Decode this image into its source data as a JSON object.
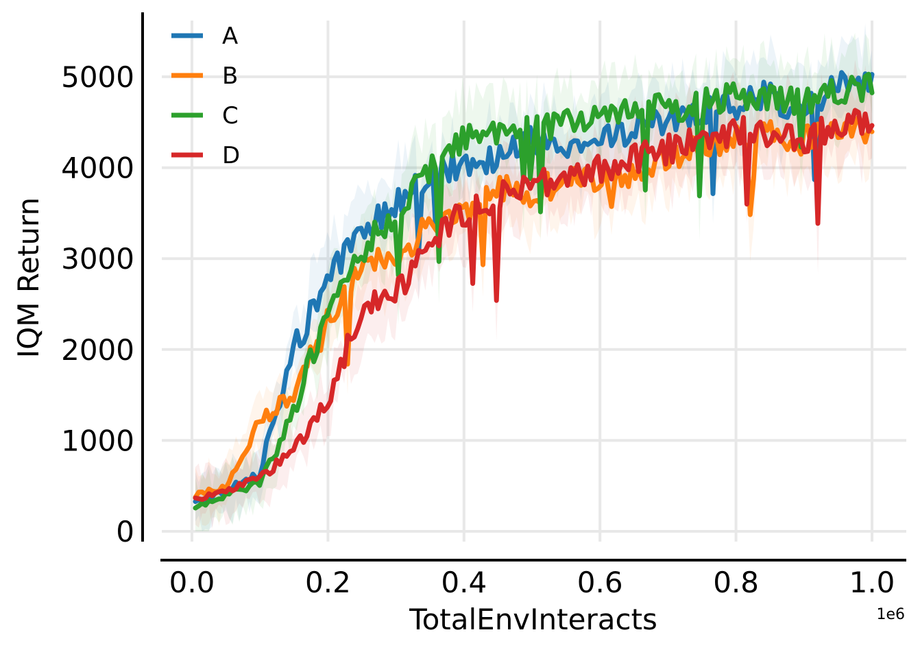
{
  "chart_data": {
    "type": "line",
    "xlabel": "TotalEnvInteracts",
    "ylabel": "IQM Return",
    "x_offset_label": "1e6",
    "xlim": [
      0,
      1.0
    ],
    "ylim": [
      0,
      5500
    ],
    "x_ticks": [
      0.0,
      0.2,
      0.4,
      0.6,
      0.8,
      1.0
    ],
    "x_tick_labels": [
      "0.0",
      "0.2",
      "0.4",
      "0.6",
      "0.8",
      "1.0"
    ],
    "y_ticks": [
      0,
      1000,
      2000,
      3000,
      4000,
      5000
    ],
    "y_tick_labels": [
      "0",
      "1000",
      "2000",
      "3000",
      "4000",
      "5000"
    ],
    "grid": true,
    "legend_position": "top-left",
    "series": [
      {
        "name": "A",
        "color": "#1f77b4",
        "x": [
          0.0,
          0.05,
          0.1,
          0.15,
          0.2,
          0.25,
          0.3,
          0.35,
          0.4,
          0.45,
          0.5,
          0.55,
          0.6,
          0.65,
          0.7,
          0.75,
          0.8,
          0.85,
          0.9,
          0.95,
          1.0
        ],
        "values": [
          300,
          450,
          650,
          2000,
          2750,
          3300,
          3600,
          3900,
          4050,
          4100,
          4300,
          4250,
          4400,
          4400,
          4500,
          4650,
          4700,
          4800,
          4600,
          4900,
          5000
        ]
      },
      {
        "name": "B",
        "color": "#ff7f0e",
        "x": [
          0.0,
          0.05,
          0.1,
          0.15,
          0.2,
          0.25,
          0.3,
          0.35,
          0.4,
          0.45,
          0.5,
          0.55,
          0.6,
          0.65,
          0.7,
          0.75,
          0.8,
          0.85,
          0.9,
          0.95,
          1.0
        ],
        "values": [
          400,
          500,
          1200,
          1500,
          2300,
          3000,
          3000,
          3400,
          3500,
          3800,
          3700,
          3900,
          3900,
          3900,
          4100,
          4200,
          4300,
          4350,
          4300,
          4400,
          4400
        ]
      },
      {
        "name": "C",
        "color": "#2ca02c",
        "x": [
          0.0,
          0.05,
          0.1,
          0.15,
          0.2,
          0.25,
          0.3,
          0.35,
          0.4,
          0.45,
          0.5,
          0.55,
          0.6,
          0.65,
          0.7,
          0.75,
          0.8,
          0.85,
          0.9,
          0.95,
          1.0
        ],
        "values": [
          250,
          400,
          550,
          1300,
          2500,
          3100,
          3500,
          4000,
          4300,
          4400,
          4400,
          4500,
          4600,
          4650,
          4650,
          4700,
          4800,
          4800,
          4700,
          4850,
          4900
        ]
      },
      {
        "name": "D",
        "color": "#d62728",
        "x": [
          0.0,
          0.05,
          0.1,
          0.15,
          0.2,
          0.25,
          0.3,
          0.35,
          0.4,
          0.45,
          0.5,
          0.55,
          0.6,
          0.65,
          0.7,
          0.75,
          0.8,
          0.85,
          0.9,
          0.95,
          1.0
        ],
        "values": [
          350,
          450,
          600,
          900,
          1400,
          2500,
          2600,
          3200,
          3500,
          3700,
          3800,
          3900,
          4000,
          4100,
          4200,
          4300,
          4400,
          4400,
          4300,
          4500,
          4500
        ]
      }
    ]
  }
}
